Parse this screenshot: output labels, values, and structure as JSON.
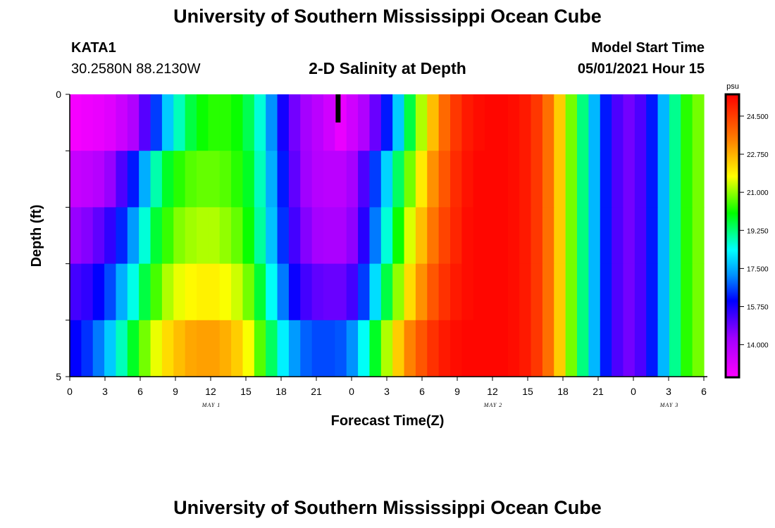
{
  "header": {
    "title_top": "University of Southern Mississippi Ocean Cube",
    "title_bottom": "University of Southern Mississippi Ocean Cube",
    "station_id": "KATA1",
    "station_location": "30.2580N  88.2130W",
    "model_start_label": "Model Start Time",
    "model_start_time": "05/01/2021 Hour 15"
  },
  "chart_data": {
    "type": "heatmap",
    "title": "2-D Salinity at Depth",
    "xlabel": "Forecast Time(Z)",
    "ylabel": "Depth (ft)",
    "x": [
      0,
      1,
      2,
      3,
      4,
      5,
      6,
      7,
      8,
      9,
      10,
      11,
      12,
      13,
      14,
      15,
      16,
      17,
      18,
      19,
      20,
      21,
      22,
      23,
      24,
      25,
      26,
      27,
      28,
      29,
      30,
      31,
      32,
      33,
      34,
      35,
      36,
      37,
      38,
      39,
      40,
      41,
      42,
      43,
      44,
      45,
      46,
      47,
      48,
      49,
      50,
      51,
      52,
      53,
      54
    ],
    "x_tick_labels": [
      "0",
      "3",
      "6",
      "9",
      "12",
      "15",
      "18",
      "21",
      "0",
      "3",
      "6",
      "9",
      "12",
      "15",
      "18",
      "21",
      "0",
      "3",
      "6"
    ],
    "date_labels": [
      "MAY 1",
      "MAY 2",
      "MAY 3"
    ],
    "y_tick_labels": [
      "0",
      "5"
    ],
    "ylim": [
      0,
      5
    ],
    "depth_rows": [
      0,
      1,
      2,
      3,
      4
    ],
    "colorbar": {
      "unit": "psu",
      "labels": [
        "24.500",
        "22.750",
        "21.000",
        "19.250",
        "17.500",
        "15.750",
        "14.000"
      ],
      "range": [
        12.5,
        25.5
      ]
    },
    "rows": [
      [
        12.7,
        12.8,
        12.9,
        13.1,
        13.5,
        14.0,
        15.1,
        16.5,
        17.8,
        18.8,
        19.6,
        20.1,
        20.3,
        20.3,
        20.1,
        19.5,
        18.6,
        17.2,
        15.8,
        14.8,
        14.2,
        13.8,
        13.4,
        12.9,
        13.4,
        14.0,
        14.9,
        16.2,
        17.8,
        19.6,
        21.2,
        22.6,
        23.8,
        24.6,
        25.1,
        25.3,
        25.4,
        25.4,
        25.3,
        25.1,
        24.6,
        23.7,
        22.4,
        20.8,
        19.2,
        17.6,
        16.2,
        15.2,
        14.8,
        15.2,
        16.2,
        17.6,
        19.1,
        20.3,
        20.8
      ],
      [
        13.6,
        13.7,
        13.9,
        14.4,
        15.2,
        16.2,
        17.5,
        18.9,
        19.8,
        20.3,
        20.6,
        20.7,
        20.7,
        20.6,
        20.3,
        19.8,
        18.8,
        17.5,
        16.2,
        15.0,
        14.3,
        13.9,
        13.8,
        13.8,
        14.2,
        15.2,
        16.5,
        17.9,
        19.4,
        20.8,
        22.0,
        23.2,
        24.1,
        24.8,
        25.2,
        25.4,
        25.4,
        25.4,
        25.3,
        25.1,
        24.6,
        23.7,
        22.4,
        20.8,
        19.2,
        17.6,
        16.2,
        15.2,
        14.8,
        15.2,
        16.2,
        17.6,
        19.1,
        20.3,
        20.8
      ],
      [
        14.4,
        14.6,
        15.0,
        15.5,
        16.3,
        17.3,
        18.6,
        19.7,
        20.4,
        20.9,
        21.1,
        21.2,
        21.2,
        21.0,
        20.7,
        20.1,
        19.0,
        17.7,
        16.4,
        15.3,
        14.6,
        14.2,
        14.1,
        14.1,
        14.5,
        15.6,
        17.0,
        18.6,
        20.1,
        21.5,
        22.6,
        23.6,
        24.4,
        24.9,
        25.3,
        25.4,
        25.4,
        25.4,
        25.3,
        25.1,
        24.6,
        23.7,
        22.4,
        20.8,
        19.2,
        17.6,
        16.2,
        15.2,
        14.8,
        15.2,
        16.2,
        17.6,
        19.1,
        20.3,
        20.8
      ],
      [
        15.3,
        15.5,
        16.0,
        16.6,
        17.5,
        18.5,
        19.6,
        20.5,
        21.2,
        21.6,
        21.8,
        21.9,
        21.9,
        21.7,
        21.4,
        20.8,
        19.7,
        18.4,
        17.0,
        15.9,
        15.3,
        15.0,
        14.9,
        14.9,
        15.3,
        16.5,
        18.0,
        19.6,
        21.0,
        22.2,
        23.2,
        24.1,
        24.7,
        25.1,
        25.3,
        25.4,
        25.4,
        25.4,
        25.3,
        25.1,
        24.6,
        23.7,
        22.4,
        20.8,
        19.2,
        17.6,
        16.2,
        15.2,
        14.8,
        15.2,
        16.2,
        17.6,
        19.1,
        20.3,
        20.8
      ],
      [
        16.0,
        16.4,
        17.0,
        17.8,
        18.8,
        19.8,
        20.8,
        21.6,
        22.2,
        22.6,
        22.9,
        23.0,
        23.0,
        22.8,
        22.4,
        21.7,
        20.6,
        19.4,
        18.2,
        17.3,
        16.8,
        16.6,
        16.6,
        16.7,
        17.2,
        18.4,
        19.8,
        21.2,
        22.4,
        23.4,
        24.1,
        24.7,
        25.1,
        25.3,
        25.4,
        25.4,
        25.4,
        25.4,
        25.3,
        25.1,
        24.6,
        23.7,
        22.4,
        20.8,
        19.2,
        17.6,
        16.2,
        15.2,
        14.8,
        15.2,
        16.2,
        17.6,
        19.1,
        20.3,
        20.8
      ]
    ],
    "marker_x": 23
  }
}
